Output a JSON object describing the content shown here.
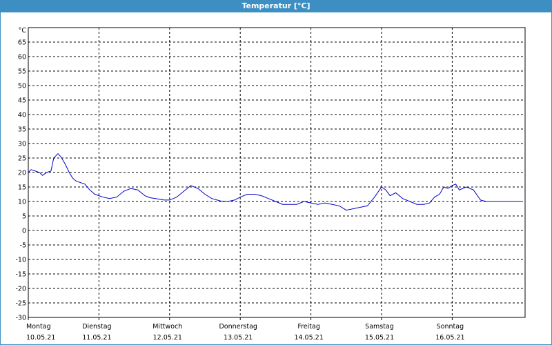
{
  "window": {
    "title": "Temperatur [°C]"
  },
  "chart_data": {
    "type": "line",
    "title": "Temperatur [°C]",
    "ylabel": "°C",
    "xlabel": "",
    "ylim": [
      -30,
      70
    ],
    "yticks": [
      -30,
      -25,
      -20,
      -15,
      -10,
      -5,
      0,
      5,
      10,
      15,
      20,
      25,
      30,
      35,
      40,
      45,
      50,
      55,
      60,
      65
    ],
    "xlim_days": [
      0,
      7
    ],
    "x_labels": [
      {
        "day": "Montag",
        "date": "10.05.21"
      },
      {
        "day": "Dienstag",
        "date": "11.05.21"
      },
      {
        "day": "Mittwoch",
        "date": "12.05.21"
      },
      {
        "day": "Donnerstag",
        "date": "13.05.21"
      },
      {
        "day": "Freitag",
        "date": "14.05.21"
      },
      {
        "day": "Samstag",
        "date": "15.05.21"
      },
      {
        "day": "Sonntag",
        "date": "16.05.21"
      }
    ],
    "grid": true,
    "line_color": "#0000cc",
    "series": [
      {
        "x": [
          0.0,
          0.04,
          0.1,
          0.16,
          0.2,
          0.26,
          0.32,
          0.36,
          0.42,
          0.46,
          0.52,
          0.58,
          0.63,
          0.68,
          0.74,
          0.8,
          0.87,
          0.94,
          1.0,
          1.06,
          1.15,
          1.25,
          1.35,
          1.45,
          1.55,
          1.65,
          1.72,
          1.8,
          1.92,
          2.0,
          2.1,
          2.2,
          2.3,
          2.4,
          2.5,
          2.6,
          2.72,
          2.82,
          2.92,
          3.0,
          3.1,
          3.2,
          3.3,
          3.4,
          3.5,
          3.6,
          3.7,
          3.8,
          3.9,
          4.0,
          4.1,
          4.2,
          4.3,
          4.4,
          4.5,
          4.6,
          4.7,
          4.8,
          4.9,
          5.0,
          5.06,
          5.12,
          5.2,
          5.3,
          5.4,
          5.5,
          5.6,
          5.68,
          5.75,
          5.82,
          5.88,
          5.94,
          6.0,
          6.05,
          6.1,
          6.2,
          6.3,
          6.4,
          6.48,
          6.53,
          6.58,
          6.62,
          6.67,
          6.72,
          6.76,
          6.8,
          6.86,
          6.9,
          6.95,
          7.0
        ],
        "y": [
          20.0,
          21.0,
          20.5,
          20.0,
          19.0,
          20.0,
          20.5,
          25.0,
          26.5,
          25.5,
          23.0,
          20.0,
          18.0,
          17.0,
          16.5,
          16.0,
          14.0,
          12.5,
          12.0,
          11.5,
          11.0,
          11.5,
          13.5,
          14.5,
          14.0,
          12.0,
          11.3,
          11.0,
          10.5,
          10.5,
          11.5,
          13.5,
          15.5,
          14.5,
          12.5,
          11.0,
          10.2,
          10.0,
          10.5,
          11.5,
          12.5,
          12.5,
          12.0,
          11.0,
          10.0,
          9.0,
          9.0,
          9.0,
          10.0,
          9.5,
          9.0,
          9.5,
          9.0,
          8.5,
          7.0,
          7.5,
          8.0,
          8.5,
          11.5,
          15.0,
          14.0,
          12.0,
          13.0,
          11.0,
          10.0,
          9.0,
          9.0,
          9.5,
          11.5,
          12.5,
          15.0,
          14.5,
          15.5,
          16.0,
          14.0,
          15.0,
          14.0,
          10.5,
          10.0,
          10.0,
          10.0,
          10.0,
          10.0,
          10.0,
          10.0,
          10.0,
          10.0,
          10.0,
          10.0,
          10.0
        ]
      }
    ]
  }
}
